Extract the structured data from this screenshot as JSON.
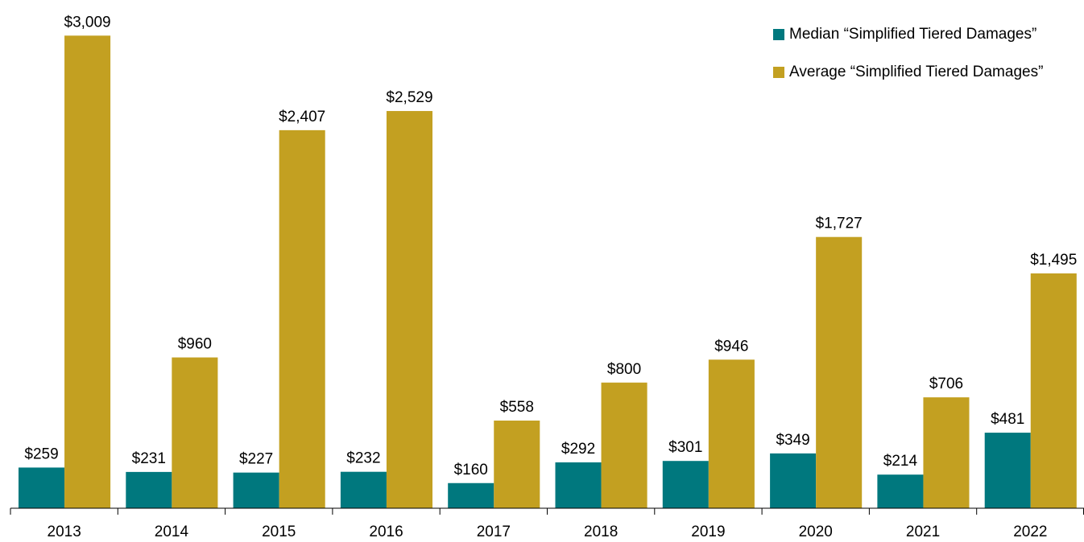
{
  "chart_data": {
    "type": "bar",
    "categories": [
      "2013",
      "2014",
      "2015",
      "2016",
      "2017",
      "2018",
      "2019",
      "2020",
      "2021",
      "2022"
    ],
    "series": [
      {
        "name": "Median “Simplified Tiered Damages”",
        "color": "#00787e",
        "values": [
          259,
          231,
          227,
          232,
          160,
          292,
          301,
          349,
          214,
          481
        ],
        "value_labels": [
          "$259",
          "$231",
          "$227",
          "$232",
          "$160",
          "$292",
          "$301",
          "$349",
          "$214",
          "$481"
        ]
      },
      {
        "name": "Average “Simplified Tiered Damages”",
        "color": "#c3a021",
        "values": [
          3009,
          960,
          2407,
          2529,
          558,
          800,
          946,
          1727,
          706,
          1495
        ],
        "value_labels": [
          "$3,009",
          "$960",
          "$2,407",
          "$2,529",
          "$558",
          "$800",
          "$946",
          "$1,727",
          "$706",
          "$1,495"
        ]
      }
    ],
    "ylim": [
      0,
      3200
    ],
    "legend": "upper right"
  }
}
